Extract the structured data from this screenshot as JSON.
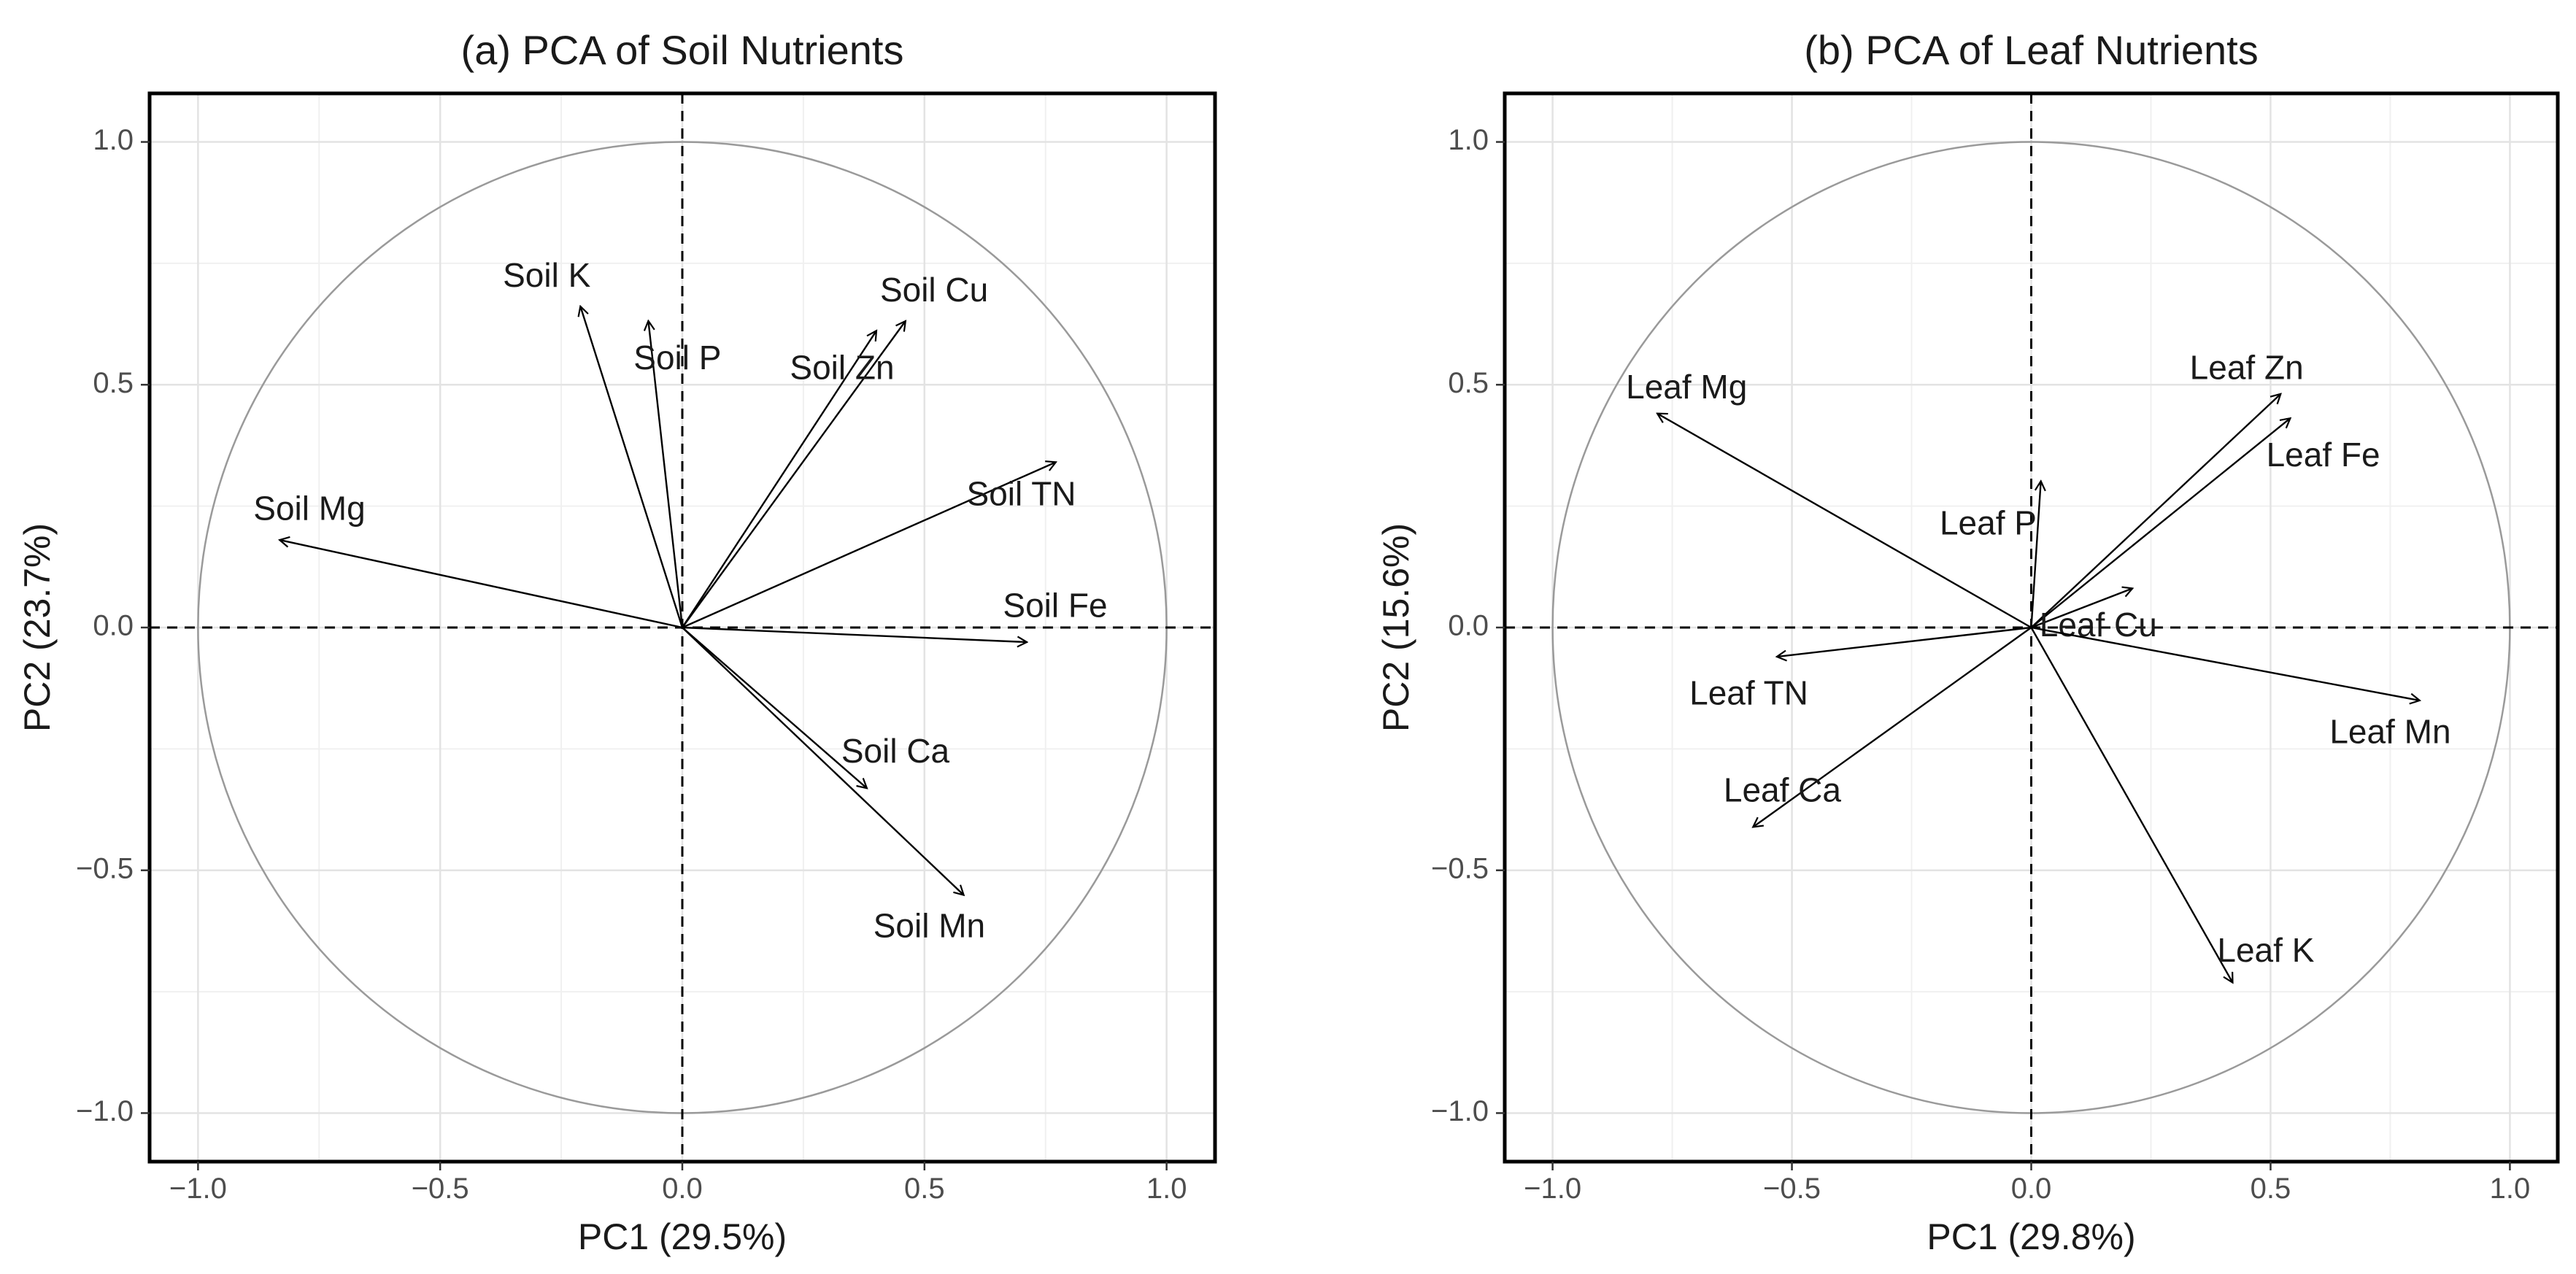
{
  "chart_data": [
    {
      "type": "pca_biplot",
      "title": "(a) PCA of Soil Nutrients",
      "xlabel": "PC1 (29.5%)",
      "ylabel": "PC2 (23.7%)",
      "xlim": [
        -1.1,
        1.1
      ],
      "ylim": [
        -1.1,
        1.1
      ],
      "x_ticks": [
        -1.0,
        -0.5,
        0.0,
        0.5,
        1.0
      ],
      "y_ticks": [
        -1.0,
        -0.5,
        0.0,
        0.5,
        1.0
      ],
      "x_tick_labels": [
        "−1.0",
        "−0.5",
        "0.0",
        "0.5",
        "1.0"
      ],
      "y_tick_labels": [
        "−1.0",
        "−0.5",
        "0.0",
        "0.5",
        "1.0"
      ],
      "grid": true,
      "unit_circle": true,
      "vectors": [
        {
          "name": "Soil K",
          "x": -0.21,
          "y": 0.66,
          "label": "Soil K",
          "lx": -0.28,
          "ly": 0.72
        },
        {
          "name": "Soil P",
          "x": -0.07,
          "y": 0.63,
          "label": "Soil P",
          "lx": -0.01,
          "ly": 0.55
        },
        {
          "name": "Soil Cu",
          "x": 0.46,
          "y": 0.63,
          "label": "Soil Cu",
          "lx": 0.52,
          "ly": 0.69
        },
        {
          "name": "Soil Zn",
          "x": 0.4,
          "y": 0.61,
          "label": "Soil Zn",
          "lx": 0.33,
          "ly": 0.53
        },
        {
          "name": "Soil TN",
          "x": 0.77,
          "y": 0.34,
          "label": "Soil TN",
          "lx": 0.7,
          "ly": 0.27
        },
        {
          "name": "Soil Mg",
          "x": -0.83,
          "y": 0.18,
          "label": "Soil Mg",
          "lx": -0.77,
          "ly": 0.24
        },
        {
          "name": "Soil Fe",
          "x": 0.71,
          "y": -0.03,
          "label": "Soil Fe",
          "lx": 0.77,
          "ly": 0.04
        },
        {
          "name": "Soil Ca",
          "x": 0.38,
          "y": -0.33,
          "label": "Soil Ca",
          "lx": 0.44,
          "ly": -0.26
        },
        {
          "name": "Soil Mn",
          "x": 0.58,
          "y": -0.55,
          "label": "Soil Mn",
          "lx": 0.51,
          "ly": -0.62
        }
      ]
    },
    {
      "type": "pca_biplot",
      "title": "(b) PCA of Leaf Nutrients",
      "xlabel": "PC1 (29.8%)",
      "ylabel": "PC2 (15.6%)",
      "xlim": [
        -1.1,
        1.1
      ],
      "ylim": [
        -1.1,
        1.1
      ],
      "x_ticks": [
        -1.0,
        -0.5,
        0.0,
        0.5,
        1.0
      ],
      "y_ticks": [
        -1.0,
        -0.5,
        0.0,
        0.5,
        1.0
      ],
      "x_tick_labels": [
        "−1.0",
        "−0.5",
        "0.0",
        "0.5",
        "1.0"
      ],
      "y_tick_labels": [
        "−1.0",
        "−0.5",
        "0.0",
        "0.5",
        "1.0"
      ],
      "grid": true,
      "unit_circle": true,
      "vectors": [
        {
          "name": "Leaf Mg",
          "x": -0.78,
          "y": 0.44,
          "label": "Leaf Mg",
          "lx": -0.72,
          "ly": 0.49
        },
        {
          "name": "Leaf Zn",
          "x": 0.52,
          "y": 0.48,
          "label": "Leaf Zn",
          "lx": 0.45,
          "ly": 0.53
        },
        {
          "name": "Leaf Fe",
          "x": 0.54,
          "y": 0.43,
          "label": "Leaf Fe",
          "lx": 0.61,
          "ly": 0.35
        },
        {
          "name": "Leaf P",
          "x": 0.02,
          "y": 0.3,
          "label": "Leaf P",
          "lx": -0.09,
          "ly": 0.21
        },
        {
          "name": "Leaf Cu",
          "x": 0.21,
          "y": 0.08,
          "label": "Leaf Cu",
          "lx": 0.14,
          "ly": 0.0
        },
        {
          "name": "Leaf TN",
          "x": -0.53,
          "y": -0.06,
          "label": "Leaf TN",
          "lx": -0.59,
          "ly": -0.14
        },
        {
          "name": "Leaf Mn",
          "x": 0.81,
          "y": -0.15,
          "label": "Leaf Mn",
          "lx": 0.75,
          "ly": -0.22
        },
        {
          "name": "Leaf Ca",
          "x": -0.58,
          "y": -0.41,
          "label": "Leaf Ca",
          "lx": -0.52,
          "ly": -0.34
        },
        {
          "name": "Leaf K",
          "x": 0.42,
          "y": -0.73,
          "label": "Leaf K",
          "lx": 0.49,
          "ly": -0.67
        }
      ]
    }
  ]
}
